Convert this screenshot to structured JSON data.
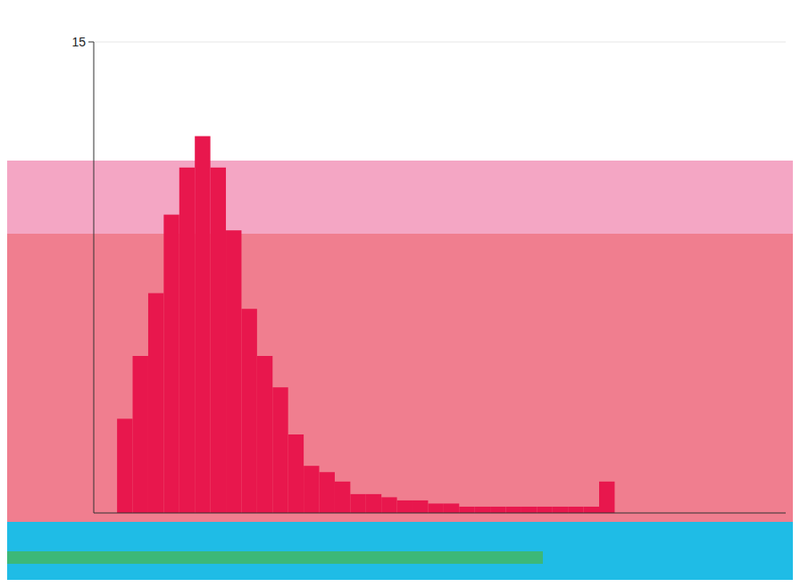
{
  "chart_data": {
    "type": "histogram",
    "bins": [
      0,
      1,
      2,
      3,
      4,
      5,
      6,
      7,
      8,
      9,
      10,
      11,
      12,
      13,
      14,
      15,
      16,
      17,
      18,
      19,
      20,
      21,
      22,
      23,
      24,
      25,
      26,
      27,
      28,
      29,
      30,
      31,
      32,
      33,
      34,
      35,
      36,
      37,
      38,
      39,
      40,
      41,
      42
    ],
    "values": [
      3,
      5,
      7,
      9.5,
      11,
      12,
      11,
      9,
      6.5,
      5,
      4,
      2.5,
      1.5,
      1.3,
      1,
      0.6,
      0.6,
      0.5,
      0.4,
      0.4,
      0.3,
      0.3,
      0.2,
      0.2,
      0.2,
      0.2,
      0.2,
      0.2,
      0.2,
      0.2,
      0.2,
      1,
      0,
      0,
      0,
      0,
      0,
      0,
      0,
      0,
      0,
      0
    ],
    "color": "#e8174d",
    "xlim": [
      -1.5,
      43
    ],
    "ylim": [
      0,
      15
    ],
    "yticks": [
      15
    ],
    "grid": true,
    "tick_labels": "y"
  }
}
